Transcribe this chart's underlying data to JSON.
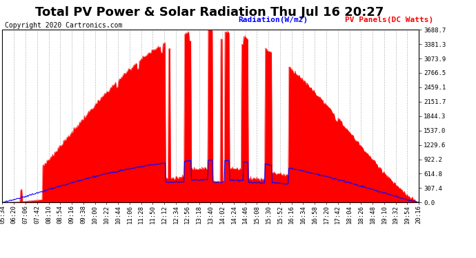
{
  "title": "Total PV Power & Solar Radiation Thu Jul 16 20:27",
  "copyright": "Copyright 2020 Cartronics.com",
  "legend_radiation": "Radiation(W/m2)",
  "legend_pv": "PV Panels(DC Watts)",
  "yticks": [
    0.0,
    307.4,
    614.8,
    922.2,
    1229.6,
    1537.0,
    1844.3,
    2151.7,
    2459.1,
    2766.5,
    3073.9,
    3381.3,
    3688.7
  ],
  "ymax": 3688.7,
  "ymin": 0.0,
  "bg_color": "#ffffff",
  "grid_color": "#bbbbbb",
  "pv_color": "#ff0000",
  "radiation_color": "#0000ff",
  "title_fontsize": 13,
  "copyright_fontsize": 7,
  "tick_fontsize": 6.5,
  "legend_fontsize": 8,
  "x_tick_labels": [
    "05:34",
    "06:20",
    "07:06",
    "07:42",
    "08:10",
    "08:54",
    "09:16",
    "09:38",
    "10:00",
    "10:22",
    "10:44",
    "11:06",
    "11:28",
    "11:50",
    "12:12",
    "12:34",
    "12:56",
    "13:18",
    "13:40",
    "14:02",
    "14:24",
    "14:46",
    "15:08",
    "15:30",
    "15:52",
    "16:16",
    "16:34",
    "16:58",
    "17:20",
    "17:42",
    "18:04",
    "18:26",
    "18:48",
    "19:10",
    "19:32",
    "19:54",
    "20:16"
  ]
}
